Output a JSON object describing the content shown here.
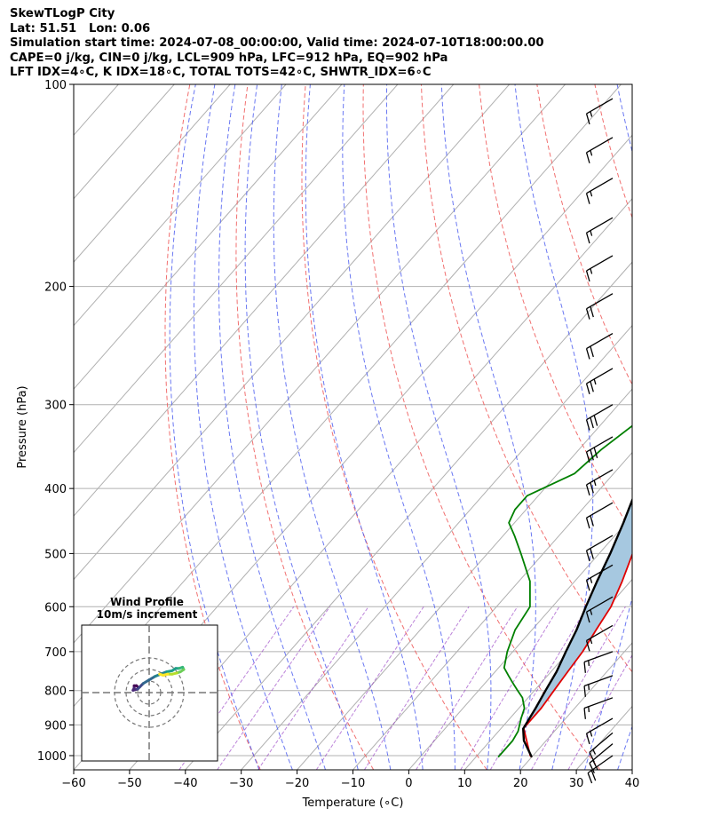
{
  "header": {
    "line1": "SkewTLogP City",
    "line2": "Lat: 51.51   Lon: 0.06",
    "line3": "Simulation start time: 2024-07-08_00:00:00, Valid time: 2024-07-10T18:00:00.00",
    "line4": "CAPE=0 j/kg, CIN=0 j/kg, LCL=909 hPa, LFC=912 hPa, EQ=902 hPa",
    "line5": "LFT IDX=4∘C, K IDX=18∘C, TOTAL TOTS=42∘C, SHWTR_IDX=6∘C"
  },
  "chart_data": {
    "type": "skewt",
    "xlabel": "Temperature (∘C)",
    "ylabel": "Pressure (hPa)",
    "xlim": [
      -60,
      40
    ],
    "ylim": [
      1050,
      100
    ],
    "x_ticks": [
      -60,
      -50,
      -40,
      -30,
      -20,
      -10,
      0,
      10,
      20,
      30,
      40
    ],
    "x_tick_labels": [
      "−60",
      "−50",
      "−40",
      "−30",
      "−20",
      "−10",
      "0",
      "10",
      "20",
      "30",
      "40"
    ],
    "y_ticks": [
      1000,
      900,
      800,
      700,
      600,
      500,
      400,
      300,
      200,
      100
    ],
    "y_tick_labels": [
      "1000",
      "900",
      "800",
      "700",
      "600",
      "500",
      "400",
      "300",
      "200",
      "100"
    ],
    "grid": true,
    "series": [
      {
        "kind": "temperature",
        "color": "#e00000",
        "p": [
          1005,
          1000,
          950,
          910,
          880,
          850,
          800,
          750,
          700,
          650,
          600,
          550,
          500,
          450,
          400,
          350,
          300,
          270,
          250,
          240,
          230,
          220,
          210,
          200,
          180,
          160,
          140,
          120,
          100
        ],
        "t": [
          20,
          19.5,
          16.5,
          14,
          14,
          14,
          13.5,
          13,
          12.5,
          11.5,
          10.5,
          8.5,
          6,
          4,
          2,
          -2,
          -6,
          -8,
          -8.5,
          -6,
          -3,
          0,
          2,
          2,
          -2,
          -6,
          -10,
          -15,
          -21
        ]
      },
      {
        "kind": "dewpoint",
        "color": "#008000",
        "p": [
          1005,
          950,
          920,
          880,
          850,
          820,
          800,
          780,
          760,
          740,
          700,
          650,
          600,
          550,
          500,
          470,
          450,
          430,
          410,
          380,
          350,
          320,
          310,
          300,
          290,
          270,
          250,
          240,
          230,
          220,
          210,
          190,
          170,
          150,
          130,
          110,
          100
        ],
        "td": [
          14,
          14,
          13.5,
          12,
          11,
          9,
          7,
          5,
          3,
          1,
          -1,
          -3,
          -4,
          -8,
          -14,
          -18,
          -21,
          -22,
          -22,
          -17,
          -16,
          -14,
          -13,
          -13,
          -14,
          -16,
          -18,
          -19,
          -20,
          -21,
          -22,
          -26,
          -29,
          -30,
          -32,
          -36,
          -40
        ]
      },
      {
        "kind": "parcel",
        "color": "#000000",
        "p": [
          1005,
          950,
          912,
          850,
          800,
          750,
          700,
          650,
          600,
          550,
          500,
          450,
          400,
          350,
          300,
          270,
          250,
          230,
          210,
          190,
          170,
          150,
          130,
          115,
          100
        ],
        "t": [
          20,
          16,
          14,
          13,
          12,
          11,
          9.5,
          8,
          6,
          4,
          2,
          -0.5,
          -3.5,
          -7,
          -11,
          -14.5,
          -17.5,
          -21,
          -24.5,
          -29,
          -34,
          -40,
          -47,
          -53,
          -60
        ]
      }
    ],
    "cape_fill": "#a6c8e0",
    "dry_adiabats_color": "#f06060",
    "moist_adiabats_color": "#5060f0",
    "mixing_ratio_color": "#9030c0",
    "wind_barbs": [
      {
        "p": 1000,
        "speed": 20,
        "dir": 235
      },
      {
        "p": 960,
        "speed": 20,
        "dir": 230
      },
      {
        "p": 925,
        "speed": 15,
        "dir": 230
      },
      {
        "p": 880,
        "speed": 15,
        "dir": 240
      },
      {
        "p": 820,
        "speed": 15,
        "dir": 250
      },
      {
        "p": 760,
        "speed": 15,
        "dir": 250
      },
      {
        "p": 700,
        "speed": 15,
        "dir": 250
      },
      {
        "p": 640,
        "speed": 15,
        "dir": 240
      },
      {
        "p": 580,
        "speed": 15,
        "dir": 240
      },
      {
        "p": 520,
        "speed": 15,
        "dir": 240
      },
      {
        "p": 470,
        "speed": 20,
        "dir": 240
      },
      {
        "p": 420,
        "speed": 20,
        "dir": 240
      },
      {
        "p": 375,
        "speed": 25,
        "dir": 240
      },
      {
        "p": 335,
        "speed": 30,
        "dir": 240
      },
      {
        "p": 300,
        "speed": 30,
        "dir": 240
      },
      {
        "p": 265,
        "speed": 25,
        "dir": 240
      },
      {
        "p": 235,
        "speed": 20,
        "dir": 240
      },
      {
        "p": 205,
        "speed": 20,
        "dir": 240
      },
      {
        "p": 180,
        "speed": 15,
        "dir": 240
      },
      {
        "p": 158,
        "speed": 15,
        "dir": 240
      },
      {
        "p": 138,
        "speed": 15,
        "dir": 240
      },
      {
        "p": 120,
        "speed": 15,
        "dir": 240
      },
      {
        "p": 105,
        "speed": 15,
        "dir": 240
      }
    ],
    "hodograph": {
      "title": "Wind Profile",
      "subtitle": "10m/s increment",
      "rings": [
        10,
        20,
        30
      ],
      "u": [
        -10,
        -11,
        -13,
        -13,
        -14,
        -10,
        -8,
        -5,
        0,
        5,
        10,
        15,
        20,
        23,
        26,
        29,
        30,
        27,
        24,
        20,
        16,
        12,
        9
      ],
      "v": [
        5,
        6,
        6,
        4,
        2,
        3,
        5,
        8,
        11,
        14,
        16,
        18,
        19,
        21,
        21,
        22,
        20,
        18,
        17,
        16,
        16,
        15,
        16
      ]
    }
  }
}
